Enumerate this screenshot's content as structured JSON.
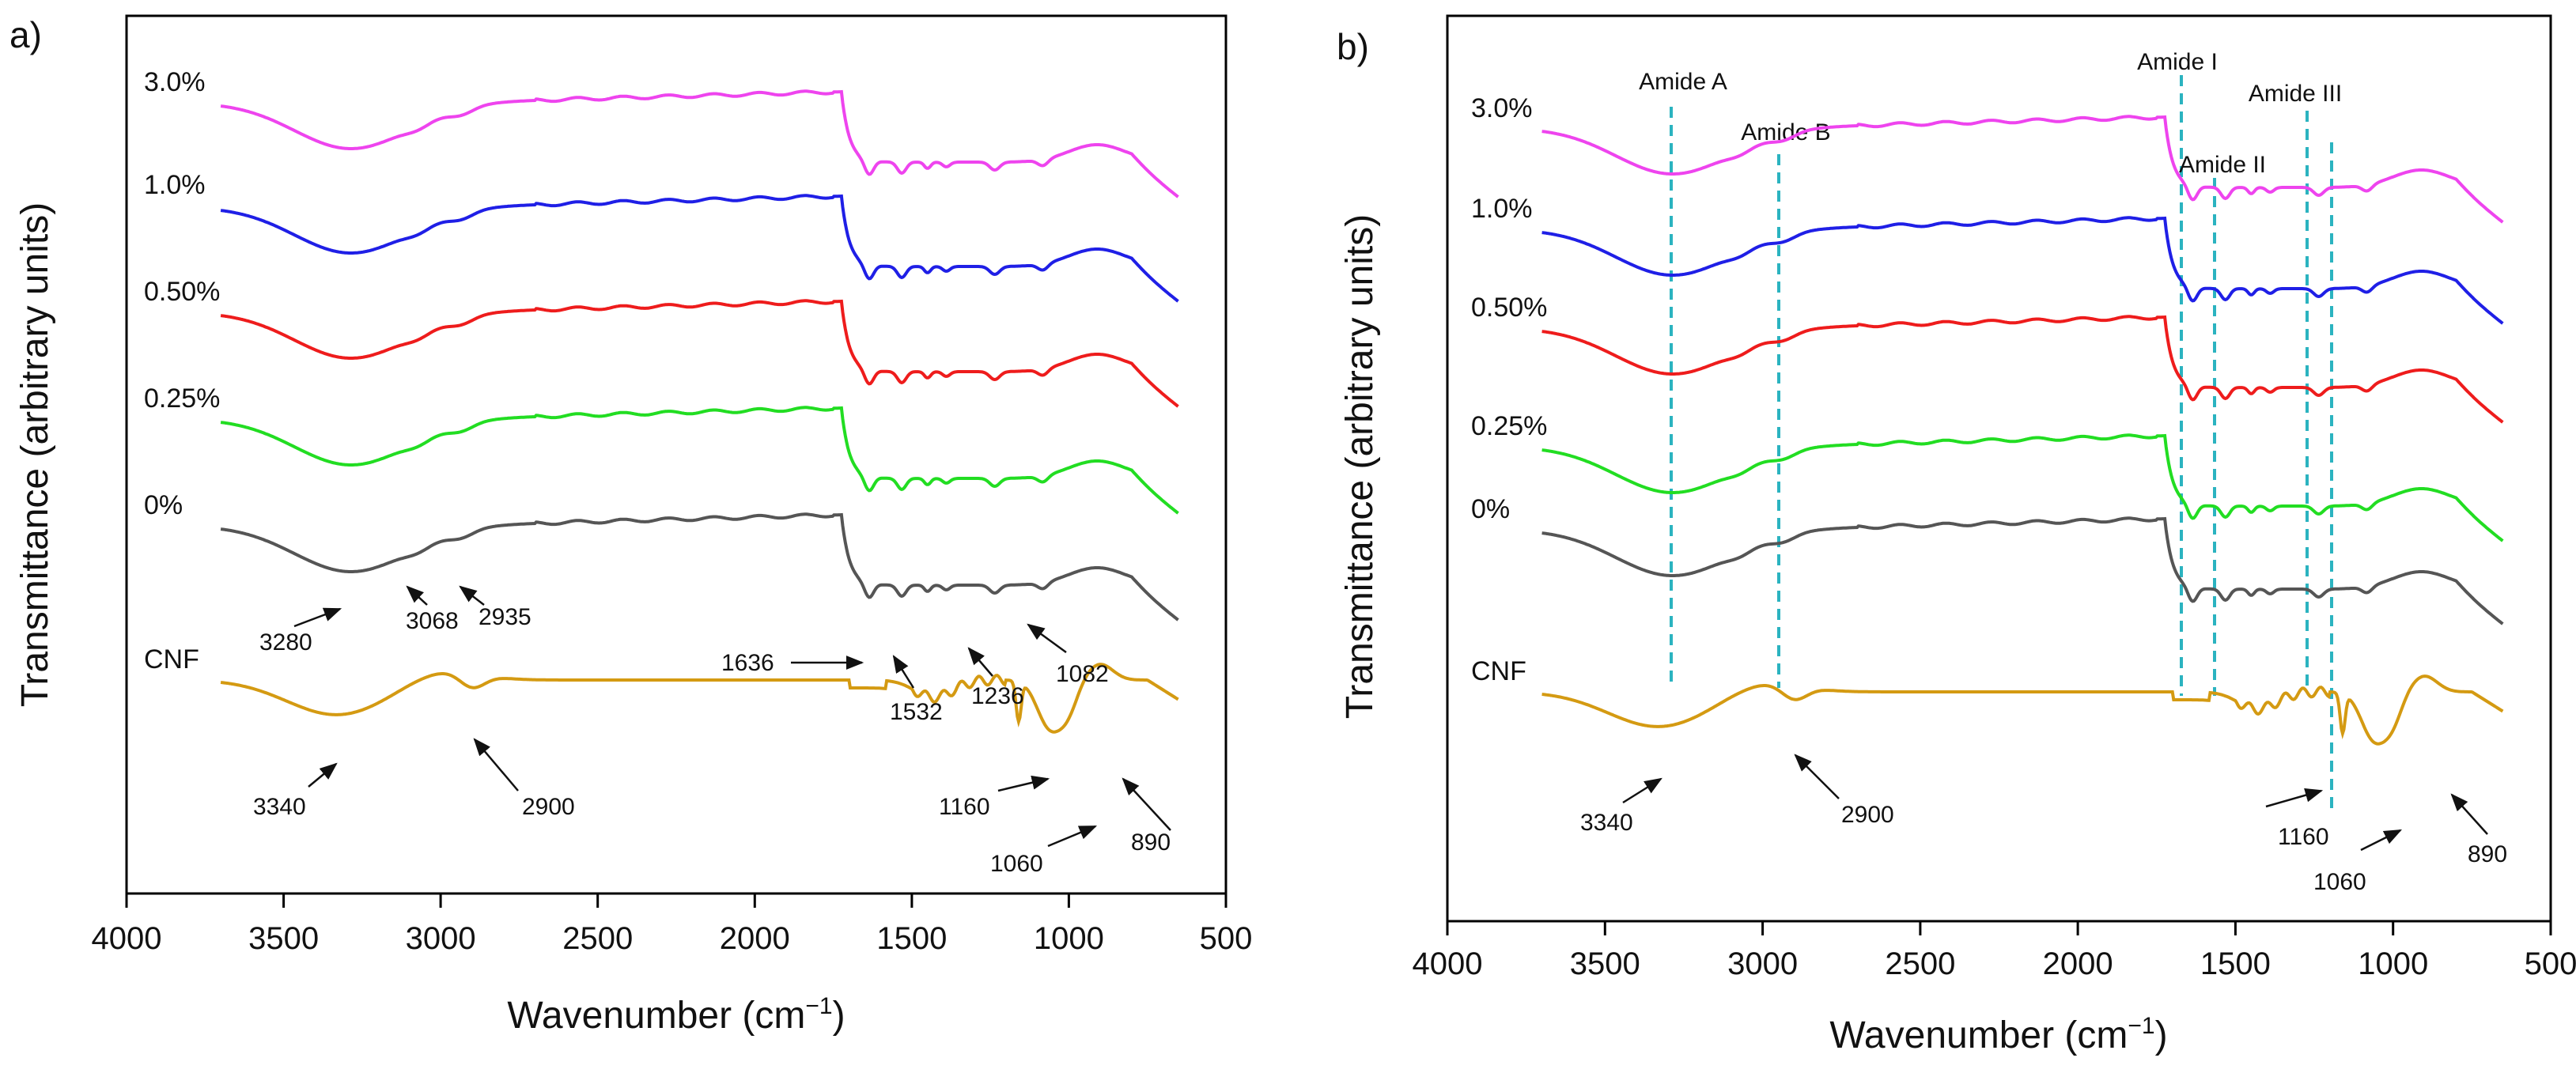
{
  "figure": {
    "panels": [
      {
        "letter": "a)",
        "xlabel_main": "Wavenumber (cm",
        "xlabel_sup": "−1",
        "xlabel_close": ")",
        "ylabel": "Transmittance (arbitrary units)",
        "xlim": [
          4000,
          500
        ],
        "xticks": [
          4000,
          3500,
          3000,
          2500,
          2000,
          1500,
          1000,
          500
        ],
        "xtick_labels": [
          "4000",
          "3500",
          "3000",
          "2500",
          "2000",
          "1500",
          "1000",
          "500"
        ],
        "series": [
          {
            "name": "3.0%",
            "color": "#ee44ee"
          },
          {
            "name": "1.0%",
            "color": "#1f1fe6"
          },
          {
            "name": "0.50%",
            "color": "#ee1c1c"
          },
          {
            "name": "0.25%",
            "color": "#22dd22"
          },
          {
            "name": "0%",
            "color": "#555555"
          },
          {
            "name": "CNF",
            "color": "#d49a12"
          }
        ],
        "annotations": [
          "3280",
          "3068",
          "2935",
          "1636",
          "1532",
          "1236",
          "1082",
          "3340",
          "2900",
          "1160",
          "1060",
          "890"
        ],
        "amide_labels": []
      },
      {
        "letter": "b)",
        "xlabel_main": "Wavenumber (cm",
        "xlabel_sup": "−1",
        "xlabel_close": ")",
        "ylabel": "Transmittance (arbitrary units)",
        "xlim": [
          4000,
          500
        ],
        "xticks": [
          4000,
          3500,
          3000,
          2500,
          2000,
          1500,
          1000,
          500
        ],
        "xtick_labels": [
          "4000",
          "3500",
          "3000",
          "2500",
          "2000",
          "1500",
          "1000",
          "500"
        ],
        "series": [
          {
            "name": "3.0%",
            "color": "#ee44ee"
          },
          {
            "name": "1.0%",
            "color": "#1f1fe6"
          },
          {
            "name": "0.50%",
            "color": "#ee1c1c"
          },
          {
            "name": "0.25%",
            "color": "#22dd22"
          },
          {
            "name": "0%",
            "color": "#555555"
          },
          {
            "name": "CNF",
            "color": "#d49a12"
          }
        ],
        "annotations": [
          "3340",
          "2900",
          "1160",
          "1060",
          "890"
        ],
        "amide_labels": [
          "Amide A",
          "Amide B",
          "Amide I",
          "Amide II",
          "Amide III"
        ],
        "amide_positions_cm1": [
          3290,
          2950,
          1636,
          1532,
          1236,
          1160
        ],
        "amide_line_color": "#2bb3c0"
      }
    ]
  },
  "chart_data": [
    {
      "type": "line",
      "title": "a)",
      "xlabel": "Wavenumber (cm−1)",
      "ylabel": "Transmittance (arbitrary units)",
      "xlim": [
        4000,
        500
      ],
      "x_range_data": [
        3700,
        650
      ],
      "grid": false,
      "legend": "inline labels at left of each curve",
      "series": [
        {
          "name": "3.0%",
          "offset": 5,
          "curve": "protein"
        },
        {
          "name": "1.0%",
          "offset": 4,
          "curve": "protein"
        },
        {
          "name": "0.50%",
          "offset": 3,
          "curve": "protein"
        },
        {
          "name": "0.25%",
          "offset": 2,
          "curve": "protein"
        },
        {
          "name": "0%",
          "offset": 1,
          "curve": "protein"
        },
        {
          "name": "CNF",
          "offset": 0,
          "curve": "cellulose"
        }
      ],
      "peaks_cm1": {
        "0%": [
          3280,
          3068,
          2935,
          1636,
          1532,
          1236,
          1082
        ],
        "CNF": [
          3340,
          2900,
          1160,
          1060,
          890
        ]
      }
    },
    {
      "type": "line",
      "title": "b)",
      "xlabel": "Wavenumber (cm−1)",
      "ylabel": "Transmittance (arbitrary units)",
      "xlim": [
        4000,
        500
      ],
      "x_range_data": [
        3700,
        650
      ],
      "grid": false,
      "legend": "inline labels at left of each curve",
      "series": [
        {
          "name": "3.0%",
          "offset": 5,
          "curve": "protein"
        },
        {
          "name": "1.0%",
          "offset": 4,
          "curve": "protein"
        },
        {
          "name": "0.50%",
          "offset": 3,
          "curve": "protein"
        },
        {
          "name": "0.25%",
          "offset": 2,
          "curve": "protein"
        },
        {
          "name": "0%",
          "offset": 1,
          "curve": "protein"
        },
        {
          "name": "CNF",
          "offset": 0,
          "curve": "cellulose"
        }
      ],
      "amide_bands_cm1": {
        "Amide A": 3290,
        "Amide B": 2950,
        "Amide I": 1636,
        "Amide II": 1532,
        "Amide III": [
          1236,
          1160
        ]
      },
      "peaks_cm1": {
        "CNF": [
          3340,
          2900,
          1160,
          1060,
          890
        ]
      }
    }
  ]
}
